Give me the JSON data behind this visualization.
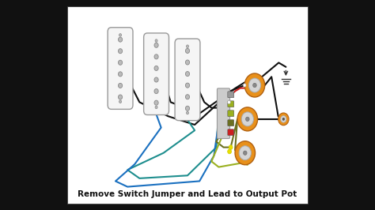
{
  "bg_color": "#111111",
  "diagram_bg": "#ffffff",
  "title": "Remove Switch Jumper and Lead to Output Pot",
  "title_fontsize": 7.5,
  "title_color": "#111111",
  "pickup_fill": "#f5f5f5",
  "pickup_edge": "#999999",
  "pole_fill": "#bbbbbb",
  "pole_edge": "#888888",
  "pot_orange": "#e8901a",
  "pot_knob": "#d5d5d5",
  "pot_center": "#888888",
  "wire_black": "#111111",
  "wire_teal": "#1e8e8e",
  "wire_blue": "#1a70c0",
  "wire_red": "#cc2020",
  "wire_olive": "#6b7020",
  "wire_ygreen": "#9ab020",
  "wire_yellow": "#e8e000",
  "switch_fill": "#cccccc",
  "switch_edge": "#999999",
  "sw_tab_red": "#cc2020",
  "sw_tab_olive": "#6b7020",
  "sw_tab_yg": "#9ab020",
  "sw_tab_gray": "#999999",
  "gnd_color": "#333333",
  "black_border": "#333333",
  "lw": 1.5
}
